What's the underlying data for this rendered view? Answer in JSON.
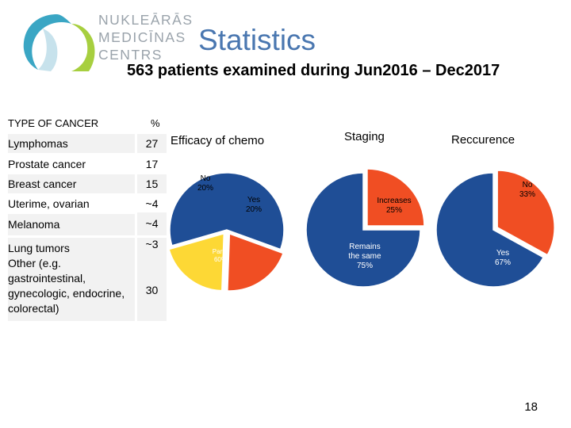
{
  "logo": {
    "lines": [
      "NUKLEĀRĀS",
      "MEDICĪNAS",
      "CENTRS"
    ]
  },
  "header": {
    "title": "Statistics",
    "subtitle": "563 patients examined during Jun2016 – Dec2017"
  },
  "table": {
    "headers": [
      "TYPE OF CANCER",
      "%"
    ],
    "rows": [
      {
        "label": "Lymphomas",
        "value": "27"
      },
      {
        "label": "Prostate cancer",
        "value": "17"
      },
      {
        "label": "Breast cancer",
        "value": "15"
      },
      {
        "label": "Uterime, ovarian",
        "value": "~4"
      },
      {
        "label": "Melanoma",
        "value": "~4"
      },
      {
        "label": "Lung tumors",
        "value": "~3"
      },
      {
        "label": "Other (e.g. gastrointestinal, gynecologic, endocrine, colorectal)",
        "value": "30"
      }
    ]
  },
  "chart_data": [
    {
      "type": "pie",
      "title": "Efficacy of chemo",
      "slices": [
        {
          "label": "No",
          "display": "20%",
          "value": 20,
          "color": "#f04e23"
        },
        {
          "label": "Yes",
          "display": "20%",
          "value": 20,
          "color": "#fdd835"
        },
        {
          "label": "Partly",
          "display": "60%",
          "value": 60,
          "color": "#1f4e96"
        }
      ]
    },
    {
      "type": "pie",
      "title": "Staging",
      "slices": [
        {
          "label": "Increases",
          "display": "25%",
          "value": 25,
          "color": "#f04e23"
        },
        {
          "label": "Remains the same",
          "display": "75%",
          "value": 75,
          "color": "#1f4e96"
        }
      ]
    },
    {
      "type": "pie",
      "title": "Reccurence",
      "slices": [
        {
          "label": "No",
          "display": "33%",
          "value": 33,
          "color": "#f04e23"
        },
        {
          "label": "Yes",
          "display": "67%",
          "value": 67,
          "color": "#1f4e96"
        }
      ]
    }
  ],
  "footer": {
    "page_number": "18"
  }
}
